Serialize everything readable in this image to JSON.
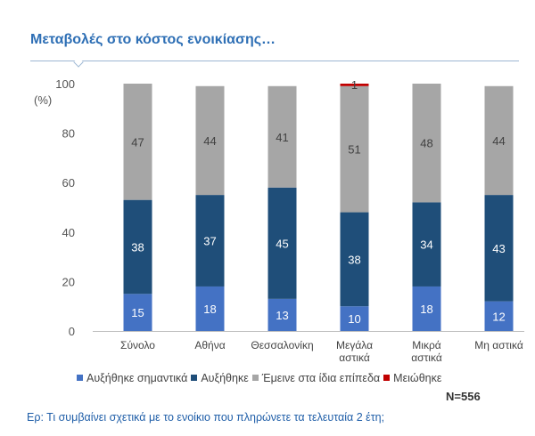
{
  "header": {
    "title": "Μεταβολές στο κόστος ενοικίασης…"
  },
  "chart_data": {
    "type": "bar",
    "stacked": true,
    "categories": [
      "Σύνολο",
      "Αθήνα",
      "Θεσσαλονίκη",
      "Μεγάλα αστικά",
      "Μικρά αστικά",
      "Μη αστικά"
    ],
    "series": [
      {
        "name": "Αυξήθηκε σημαντικά",
        "color": "#4472c4",
        "values": [
          15,
          18,
          13,
          10,
          18,
          12
        ]
      },
      {
        "name": "Αυξήθηκε",
        "color": "#1f4e79",
        "values": [
          38,
          37,
          45,
          38,
          34,
          43
        ]
      },
      {
        "name": "Έμεινε  στα ίδια επίπεδα",
        "color": "#a6a6a6",
        "values": [
          47,
          44,
          41,
          51,
          48,
          44
        ]
      },
      {
        "name": "Μειώθηκε",
        "color": "#c00000",
        "values": [
          0,
          0,
          0,
          1,
          0,
          0
        ]
      }
    ],
    "ylabel": "(%)",
    "ylim": [
      0,
      100
    ],
    "yticks": [
      0,
      20,
      40,
      60,
      80,
      100
    ],
    "legend_position": "bottom",
    "sample_size": "N=556"
  },
  "footer": {
    "question": "Ερ: Τι συμβαίνει σχετικά με το ενοίκιο που πληρώνετε τα τελευταία 2 έτη;"
  }
}
